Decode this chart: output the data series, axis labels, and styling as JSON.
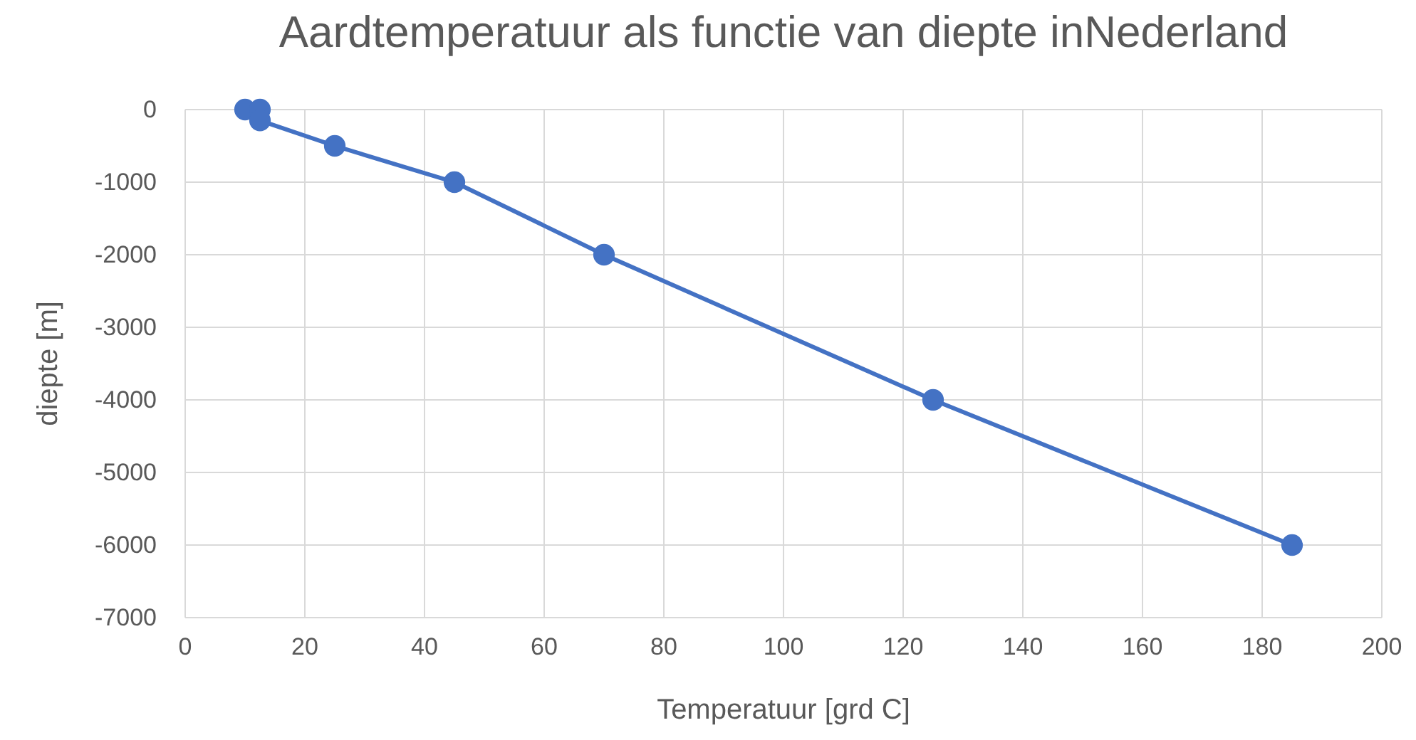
{
  "chart_data": {
    "type": "line",
    "title": "Aardtemperatuur als functie van diepte inNederland",
    "xlabel": "Temperatuur [grd C]",
    "ylabel": "diepte [m]",
    "x": [
      10,
      12.5,
      12.5,
      25,
      45,
      70,
      125,
      185
    ],
    "series": [
      {
        "color": "#4472c4",
        "values": [
          0,
          0,
          -150,
          -500,
          -1000,
          -2000,
          -4000,
          -6000
        ]
      }
    ],
    "xlim": [
      0,
      200
    ],
    "xticks": [
      0,
      20,
      40,
      60,
      80,
      100,
      120,
      140,
      160,
      180,
      200
    ],
    "ylim": [
      -7000,
      0
    ],
    "yticks": [
      -7000,
      -6000,
      -5000,
      -4000,
      -3000,
      -2000,
      -1000,
      0
    ],
    "grid": true,
    "marker": "circle",
    "line_style": "solid"
  }
}
